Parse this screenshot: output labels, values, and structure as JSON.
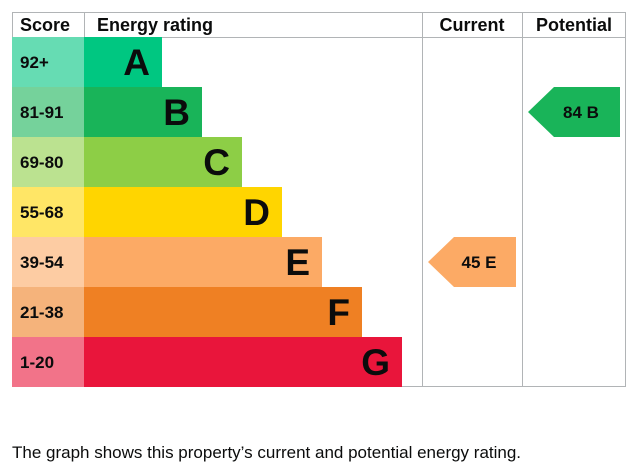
{
  "chart_data": {
    "type": "table",
    "headers": {
      "score": "Score",
      "rating": "Energy rating",
      "current": "Current",
      "potential": "Potential"
    },
    "bands": [
      {
        "score": "92+",
        "letter": "A",
        "color": "#00c781",
        "score_bg": "#66dcb3"
      },
      {
        "score": "81-91",
        "letter": "B",
        "color": "#19b459",
        "score_bg": "#75d29b"
      },
      {
        "score": "69-80",
        "letter": "C",
        "color": "#8dce46",
        "score_bg": "#bbe290"
      },
      {
        "score": "55-68",
        "letter": "D",
        "color": "#ffd500",
        "score_bg": "#ffe666"
      },
      {
        "score": "39-54",
        "letter": "E",
        "color": "#fcaa65",
        "score_bg": "#fdcca3"
      },
      {
        "score": "21-38",
        "letter": "F",
        "color": "#ef8023",
        "score_bg": "#f5b37b"
      },
      {
        "score": "1-20",
        "letter": "G",
        "color": "#e9153b",
        "score_bg": "#f27389"
      }
    ],
    "current": {
      "value": 45,
      "letter": "E",
      "label": "45 E",
      "color": "#fcaa65"
    },
    "potential": {
      "value": 84,
      "letter": "B",
      "label": "84 B",
      "color": "#19b459"
    }
  },
  "caption": "The graph shows this property’s current and potential energy rating."
}
